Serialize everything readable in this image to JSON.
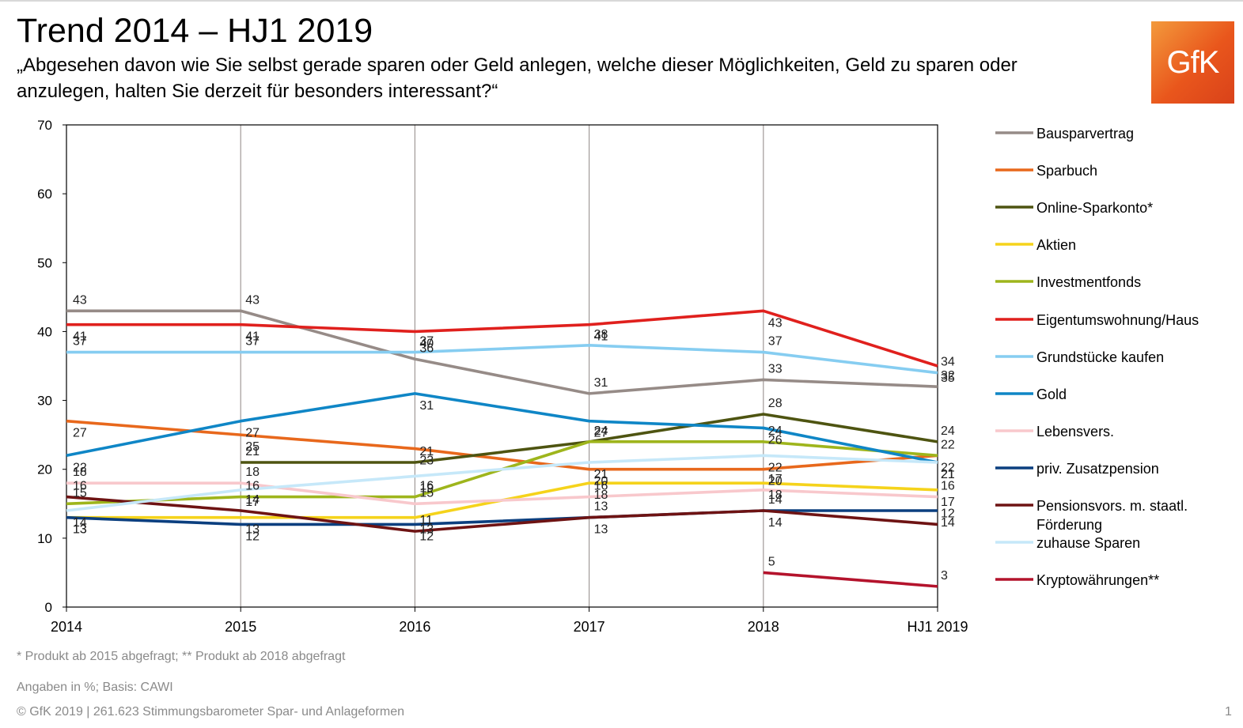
{
  "title": "Trend 2014 – HJ1 2019",
  "subtitle": "„Abgesehen davon wie Sie selbst gerade sparen oder Geld anlegen, welche dieser Möglichkeiten, Geld zu sparen oder anzulegen, halten Sie derzeit für besonders interessant?“",
  "logo_text": "GfK",
  "footnotes": {
    "products": "* Produkt ab 2015 abgefragt; ** Produkt ab 2018 abgefragt",
    "basis": "Angaben in %; Basis: CAWI",
    "copyright": "© GfK 2019 | 261.623 Stimmungsbarometer Spar- und Anlageformen"
  },
  "page_number": "1",
  "chart_data": {
    "type": "line",
    "x": [
      "2014",
      "2015",
      "2016",
      "2017",
      "2018",
      "HJ1 2019"
    ],
    "ylim": [
      0,
      70
    ],
    "yticks": [
      0,
      10,
      20,
      30,
      40,
      50,
      60,
      70
    ],
    "xlabel": "",
    "ylabel": "",
    "legend_position": "right",
    "series": [
      {
        "name": "Bausparvertrag",
        "color": "#968b87",
        "values": [
          43,
          43,
          36,
          31,
          33,
          32
        ]
      },
      {
        "name": "Sparbuch",
        "color": "#e8681c",
        "values": [
          27,
          25,
          23,
          20,
          20,
          22
        ]
      },
      {
        "name": "Online-Sparkonto*",
        "color": "#4e5411",
        "values": [
          null,
          21,
          21,
          24,
          28,
          24
        ]
      },
      {
        "name": "Aktien",
        "color": "#f5d31b",
        "values": [
          13,
          13,
          13,
          18,
          18,
          17
        ]
      },
      {
        "name": "Investmentfonds",
        "color": "#9eb51c",
        "values": [
          15,
          16,
          16,
          24,
          24,
          22
        ]
      },
      {
        "name": "Eigentumswohnung/Haus",
        "color": "#e0201d",
        "values": [
          41,
          41,
          40,
          41,
          43,
          35
        ]
      },
      {
        "name": "Grundstücke kaufen",
        "color": "#86cdf1",
        "values": [
          37,
          37,
          37,
          38,
          37,
          34
        ]
      },
      {
        "name": "Gold",
        "color": "#0f86c6",
        "values": [
          22,
          27,
          31,
          27,
          26,
          21
        ]
      },
      {
        "name": "Lebensvers.",
        "color": "#f8c8cc",
        "values": [
          18,
          18,
          15,
          16,
          17,
          16
        ]
      },
      {
        "name": "priv. Zusatzpension",
        "color": "#0b3f7f",
        "values": [
          13,
          12,
          12,
          13,
          14,
          14
        ]
      },
      {
        "name": "Pensionsvors. m. staatl. Förderung",
        "color": "#6e1313",
        "values": [
          16,
          14,
          11,
          13,
          14,
          12
        ]
      },
      {
        "name": "zuhause Sparen",
        "color": "#c6e8f9",
        "values": [
          14,
          17,
          19,
          21,
          22,
          21
        ]
      },
      {
        "name": "Kryptowährungen**",
        "color": "#b4132c",
        "values": [
          null,
          null,
          null,
          null,
          5,
          3
        ]
      }
    ]
  }
}
